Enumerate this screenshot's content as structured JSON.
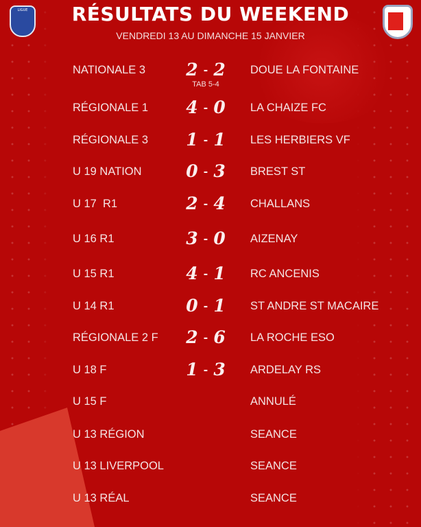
{
  "header": {
    "title": "RÉSULTATS DU WEEKEND",
    "subtitle": "VENDREDI 13 AU DIMANCHE 15 JANVIER",
    "left_logo_text": "LIGUE",
    "colors": {
      "background": "#b70707",
      "accent": "#d8392c",
      "text": "#ffffff"
    }
  },
  "results": [
    {
      "category": "NATIONALE 3",
      "home": "2",
      "away": "2",
      "opponent": "DOUE LA FONTAINE",
      "note": "TAB 5-4"
    },
    {
      "category": "RÉGIONALE 1",
      "home": "4",
      "away": "0",
      "opponent": "LA CHAIZE FC"
    },
    {
      "category": "RÉGIONALE 3",
      "home": "1",
      "away": "1",
      "opponent": "LES HERBIERS VF"
    },
    {
      "category": "U 19 NATION",
      "home": "0",
      "away": "3",
      "opponent": "BREST ST"
    },
    {
      "category": "U 17  R1",
      "home": "2",
      "away": "4",
      "opponent": "CHALLANS"
    },
    {
      "category": "U 16 R1",
      "home": "3",
      "away": "0",
      "opponent": "AIZENAY"
    },
    {
      "category": "U 15 R1",
      "home": "4",
      "away": "1",
      "opponent": "RC ANCENIS"
    },
    {
      "category": "U 14 R1",
      "home": "0",
      "away": "1",
      "opponent": "ST ANDRE ST MACAIRE"
    },
    {
      "category": "RÉGIONALE 2 F",
      "home": "2",
      "away": "6",
      "opponent": "LA ROCHE ESO"
    },
    {
      "category": "U 18 F",
      "home": "1",
      "away": "3",
      "opponent": "ARDELAY RS"
    },
    {
      "category": "U 15 F",
      "opponent": "ANNULÉ"
    },
    {
      "category": "U 13 RÉGION",
      "opponent": "SEANCE"
    },
    {
      "category": "U 13 LIVERPOOL",
      "opponent": "SEANCE"
    },
    {
      "category": "U 13 RÉAL",
      "opponent": "SEANCE"
    }
  ],
  "score_separator": "-"
}
